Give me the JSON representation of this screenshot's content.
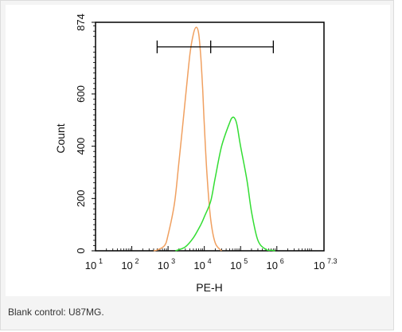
{
  "chart_data": {
    "type": "line",
    "xlabel": "PE-H",
    "ylabel": "Count",
    "x_scale": "log",
    "xlim": [
      10,
      19952623
    ],
    "ylim": [
      0,
      874
    ],
    "x_ticks": [
      {
        "value": 10,
        "base": "10",
        "exp": "1"
      },
      {
        "value": 100,
        "base": "10",
        "exp": "2"
      },
      {
        "value": 1000,
        "base": "10",
        "exp": "3"
      },
      {
        "value": 10000,
        "base": "10",
        "exp": "4"
      },
      {
        "value": 100000,
        "base": "10",
        "exp": "5"
      },
      {
        "value": 1000000,
        "base": "10",
        "exp": "6"
      },
      {
        "value": 19952623,
        "base": "10",
        "exp": "7.3"
      }
    ],
    "y_ticks": [
      {
        "value": 0,
        "label": "0"
      },
      {
        "value": 200,
        "label": "200"
      },
      {
        "value": 400,
        "label": "400"
      },
      {
        "value": 600,
        "label": "600"
      },
      {
        "value": 874,
        "label": "874"
      }
    ],
    "series": [
      {
        "color": "#f0a060",
        "x": [
          400,
          500,
          800,
          1000,
          1500,
          2000,
          3000,
          4000,
          5000,
          6000,
          7000,
          8000,
          9000,
          10000,
          12000,
          15000,
          20000,
          30000
        ],
        "y": [
          0,
          3,
          20,
          60,
          180,
          340,
          580,
          750,
          830,
          855,
          830,
          740,
          620,
          480,
          280,
          120,
          30,
          0
        ]
      },
      {
        "color": "#33dd33",
        "x": [
          1600,
          3000,
          5000,
          8000,
          10000,
          15000,
          20000,
          30000,
          50000,
          60000,
          70000,
          80000,
          100000,
          150000,
          200000,
          300000,
          500000,
          700000,
          900000
        ],
        "y": [
          0,
          15,
          50,
          100,
          130,
          190,
          280,
          400,
          490,
          510,
          505,
          480,
          400,
          270,
          150,
          40,
          5,
          2,
          0
        ]
      }
    ],
    "gate": {
      "x_start": 500,
      "x_mid": 15000,
      "x_end": 800000,
      "y": 780
    },
    "caption": "Blank control: U87MG."
  }
}
